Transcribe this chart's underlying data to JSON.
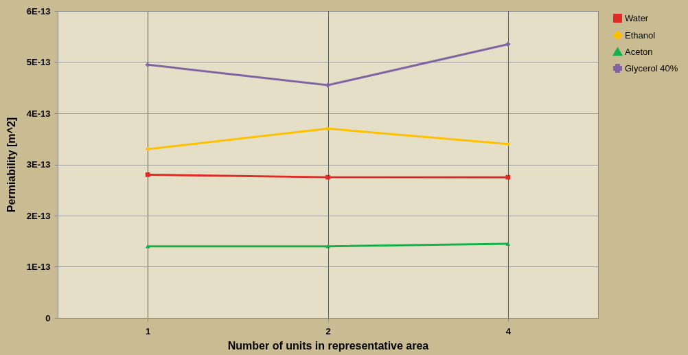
{
  "chart_data": {
    "type": "line",
    "xlabel": "Number of units in representative area",
    "ylabel": "Permiability [m^2]",
    "categories": [
      "1",
      "2",
      "4"
    ],
    "series": [
      {
        "name": "Water",
        "color": "#e02a25",
        "marker": "square",
        "values": [
          2.8e-13,
          2.75e-13,
          2.75e-13
        ]
      },
      {
        "name": "Ethanol",
        "color": "#ffc000",
        "marker": "diamond",
        "values": [
          3.3e-13,
          3.7e-13,
          3.4e-13
        ]
      },
      {
        "name": "Aceton",
        "color": "#16b04a",
        "marker": "triangle",
        "values": [
          1.4e-13,
          1.4e-13,
          1.45e-13
        ]
      },
      {
        "name": "Glycerol 40%",
        "color": "#8064a2",
        "marker": "cross",
        "values": [
          4.95e-13,
          4.55e-13,
          5.35e-13
        ]
      }
    ],
    "ylim": [
      0,
      6e-13
    ],
    "yticks": [
      0,
      {
        "value": 1e-13,
        "label": "1E-13"
      },
      {
        "value": 2e-13,
        "label": "2E-13"
      },
      {
        "value": 3e-13,
        "label": "3E-13"
      },
      {
        "value": 4e-13,
        "label": "4E-13"
      },
      {
        "value": 5e-13,
        "label": "5E-13"
      },
      {
        "value": 6e-13,
        "label": "6E-13"
      }
    ],
    "grid": true,
    "legend": "right",
    "line_style": "solid"
  }
}
